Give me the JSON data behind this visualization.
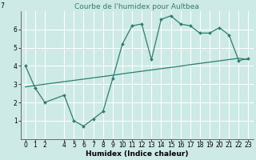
{
  "title": "Courbe de l'humidex pour Aultbea",
  "xlabel": "Humidex (Indice chaleur)",
  "bg_color": "#ceeae6",
  "grid_color": "#ffffff",
  "line_color": "#2e7d6e",
  "line1_x": [
    0,
    1,
    2,
    4,
    5,
    6,
    7,
    8,
    9,
    10,
    11,
    12,
    13,
    14,
    15,
    16,
    17,
    18,
    19,
    20,
    21,
    22,
    23
  ],
  "line1_y": [
    4.0,
    2.8,
    2.0,
    2.4,
    1.0,
    0.7,
    1.1,
    1.5,
    3.3,
    5.2,
    6.2,
    6.3,
    4.35,
    6.55,
    6.75,
    6.3,
    6.2,
    5.8,
    5.8,
    6.1,
    5.7,
    4.3,
    4.4
  ],
  "line2_x": [
    0,
    1,
    2,
    3,
    4,
    5,
    6,
    7,
    8,
    9,
    10,
    11,
    12,
    13,
    14,
    15,
    16,
    17,
    18,
    19,
    20,
    21,
    22,
    23
  ],
  "line2_y": [
    2.85,
    2.93,
    3.0,
    3.07,
    3.14,
    3.21,
    3.28,
    3.35,
    3.42,
    3.49,
    3.57,
    3.64,
    3.71,
    3.78,
    3.85,
    3.92,
    3.99,
    4.07,
    4.14,
    4.21,
    4.28,
    4.35,
    4.42,
    4.35
  ],
  "ylim": [
    0,
    7
  ],
  "xlim": [
    -0.5,
    23.5
  ],
  "yticks": [
    1,
    2,
    3,
    4,
    5,
    6
  ],
  "ytick_top_label": "7",
  "xtick_positions": [
    0,
    1,
    2,
    4,
    5,
    6,
    7,
    8,
    9,
    10,
    11,
    12,
    13,
    14,
    15,
    16,
    17,
    18,
    19,
    20,
    21,
    22,
    23
  ],
  "xtick_labels": [
    "0",
    "1",
    "2",
    "4",
    "5",
    "6",
    "7",
    "8",
    "9",
    "10",
    "11",
    "12",
    "13",
    "14",
    "15",
    "16",
    "17",
    "18",
    "19",
    "20",
    "21",
    "22",
    "23"
  ],
  "title_fontsize": 6.5,
  "axis_fontsize": 6.5,
  "tick_fontsize": 5.5
}
